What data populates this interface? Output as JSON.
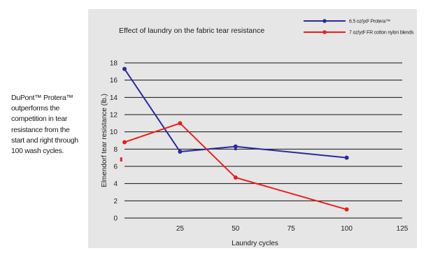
{
  "side_text": "DuPont™ Protera™ outperforms the competition in tear resistance from the start and right through 100 wash cycles.",
  "chart_data": {
    "type": "line",
    "title": "Effect of laundry on the fabric tear resistance",
    "xlabel": "Laundry cycles",
    "ylabel": "Elmendorf tear resistance (lb.)",
    "xlim": [
      0,
      125
    ],
    "ylim": [
      0,
      18
    ],
    "xticks": [
      25,
      50,
      75,
      100,
      125
    ],
    "yticks": [
      0,
      2,
      4,
      6,
      8,
      10,
      12,
      14,
      16,
      18
    ],
    "grid": "horizontal",
    "legend": "top-right",
    "series": [
      {
        "name": "6.5 oz/yd² Protera™",
        "color": "#2a2a9e",
        "x": [
          0,
          25,
          50,
          100
        ],
        "y": [
          17.3,
          7.7,
          8.3,
          7.0
        ]
      },
      {
        "name": "7 oz/yd² FR cotton nylon blends",
        "color": "#ee1c1c",
        "x": [
          0,
          25,
          50,
          100
        ],
        "y": [
          8.8,
          11.0,
          4.7,
          1.0
        ]
      }
    ],
    "stray_marks": [
      {
        "color": "#ee1c1c",
        "x": -1.5,
        "y": 6.8
      },
      {
        "color": "#2a2a9e",
        "x": 50,
        "y": 8.1
      }
    ]
  }
}
